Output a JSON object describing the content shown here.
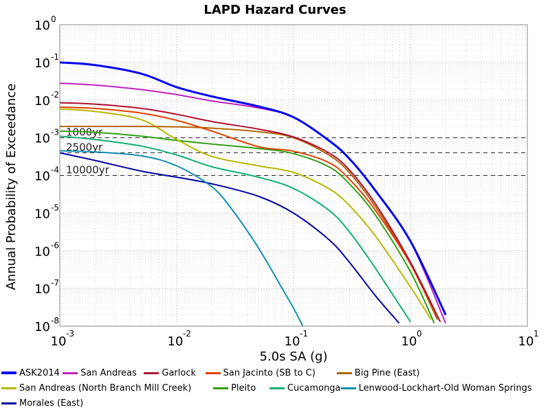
{
  "chart_data": {
    "type": "line",
    "title": "LAPD Hazard Curves",
    "xlabel": "5.0s SA (g)",
    "ylabel": "Annual Probability of Exceedance",
    "xscale": "log",
    "yscale": "log",
    "xlim": [
      0.001,
      10
    ],
    "ylim": [
      1e-08,
      1
    ],
    "x_ticks": [
      {
        "base": "10",
        "exp": "-3"
      },
      {
        "base": "10",
        "exp": "-2"
      },
      {
        "base": "10",
        "exp": "-1"
      },
      {
        "base": "10",
        "exp": "0"
      },
      {
        "base": "10",
        "exp": "1"
      }
    ],
    "y_ticks": [
      {
        "base": "10",
        "exp": "0"
      },
      {
        "base": "10",
        "exp": "-1"
      },
      {
        "base": "10",
        "exp": "-2"
      },
      {
        "base": "10",
        "exp": "-3"
      },
      {
        "base": "10",
        "exp": "-4"
      },
      {
        "base": "10",
        "exp": "-5"
      },
      {
        "base": "10",
        "exp": "-6"
      },
      {
        "base": "10",
        "exp": "-7"
      },
      {
        "base": "10",
        "exp": "-8"
      }
    ],
    "grid": true,
    "legend_position": "bottom",
    "reference_lines": [
      {
        "label": "1000yr",
        "y": 0.001
      },
      {
        "label": "2500yr",
        "y": 0.0004
      },
      {
        "label": "10000yr",
        "y": 0.0001
      }
    ],
    "series": [
      {
        "name": "ASK2014",
        "color": "#0000ee",
        "bold": true,
        "points": [
          [
            0.001,
            0.1
          ],
          [
            0.002,
            0.085
          ],
          [
            0.005,
            0.05
          ],
          [
            0.01,
            0.022
          ],
          [
            0.02,
            0.0125
          ],
          [
            0.05,
            0.0068
          ],
          [
            0.1,
            0.0035
          ],
          [
            0.2,
            0.00085
          ],
          [
            0.3,
            0.00028
          ],
          [
            0.5,
            4e-05
          ],
          [
            1,
            1.8e-06
          ],
          [
            2,
            2e-08
          ]
        ]
      },
      {
        "name": "San Andreas",
        "color": "#c020c0",
        "points": [
          [
            0.001,
            0.028
          ],
          [
            0.002,
            0.025
          ],
          [
            0.005,
            0.019
          ],
          [
            0.01,
            0.014
          ],
          [
            0.02,
            0.0095
          ],
          [
            0.05,
            0.0062
          ],
          [
            0.1,
            0.0035
          ],
          [
            0.2,
            0.00085
          ],
          [
            0.3,
            0.00028
          ],
          [
            0.5,
            4e-05
          ],
          [
            1,
            1.8e-06
          ],
          [
            2,
            1.2e-08
          ]
        ]
      },
      {
        "name": "Garlock",
        "color": "#b01030",
        "points": [
          [
            0.001,
            0.0085
          ],
          [
            0.002,
            0.0078
          ],
          [
            0.005,
            0.006
          ],
          [
            0.01,
            0.0042
          ],
          [
            0.02,
            0.0027
          ],
          [
            0.05,
            0.0017
          ],
          [
            0.1,
            0.00105
          ],
          [
            0.2,
            0.0004
          ],
          [
            0.3,
            0.00014
          ],
          [
            0.5,
            1.8e-05
          ],
          [
            1,
            5e-07
          ],
          [
            1.8,
            1.3e-08
          ]
        ]
      },
      {
        "name": "San Jacinto (SB to C)",
        "color": "#e04000",
        "points": [
          [
            0.001,
            0.0065
          ],
          [
            0.002,
            0.006
          ],
          [
            0.005,
            0.0045
          ],
          [
            0.01,
            0.0029
          ],
          [
            0.02,
            0.0015
          ],
          [
            0.05,
            0.00058
          ],
          [
            0.1,
            0.00044
          ],
          [
            0.2,
            0.00022
          ],
          [
            0.3,
            8e-05
          ],
          [
            0.5,
            1.2e-05
          ],
          [
            1,
            4.5e-07
          ],
          [
            1.8,
            1.3e-08
          ]
        ]
      },
      {
        "name": "Big Pine (East)",
        "color": "#b06000",
        "points": [
          [
            0.001,
            0.002
          ],
          [
            0.002,
            0.002
          ],
          [
            0.005,
            0.002
          ],
          [
            0.01,
            0.00195
          ],
          [
            0.02,
            0.0018
          ],
          [
            0.05,
            0.00145
          ],
          [
            0.1,
            0.001
          ],
          [
            0.2,
            0.00035
          ],
          [
            0.3,
            0.00012
          ],
          [
            0.5,
            1.5e-05
          ],
          [
            1,
            4.5e-07
          ],
          [
            1.7,
            1.5e-08
          ]
        ]
      },
      {
        "name": "San Andreas (North Branch Mill Creek)",
        "color": "#b8b800",
        "points": [
          [
            0.001,
            0.0058
          ],
          [
            0.002,
            0.005
          ],
          [
            0.005,
            0.003
          ],
          [
            0.01,
            0.0009
          ],
          [
            0.02,
            0.00032
          ],
          [
            0.05,
            0.00018
          ],
          [
            0.1,
            0.00012
          ],
          [
            0.2,
            4.5e-05
          ],
          [
            0.3,
            1.6e-05
          ],
          [
            0.5,
            2.5e-06
          ],
          [
            1,
            1.1e-07
          ],
          [
            1.5,
            1.5e-08
          ]
        ]
      },
      {
        "name": "Pleito",
        "color": "#30a010",
        "points": [
          [
            0.001,
            0.0015
          ],
          [
            0.002,
            0.0014
          ],
          [
            0.005,
            0.0011
          ],
          [
            0.01,
            0.00085
          ],
          [
            0.02,
            0.00068
          ],
          [
            0.05,
            0.00052
          ],
          [
            0.1,
            0.00038
          ],
          [
            0.2,
            0.00017
          ],
          [
            0.3,
            6e-05
          ],
          [
            0.5,
            9e-06
          ],
          [
            1,
            2.8e-07
          ],
          [
            1.6,
            1.2e-08
          ]
        ]
      },
      {
        "name": "Cucamonga",
        "color": "#10b070",
        "points": [
          [
            0.001,
            0.0011
          ],
          [
            0.002,
            0.0009
          ],
          [
            0.005,
            0.0006
          ],
          [
            0.01,
            0.00035
          ],
          [
            0.02,
            0.00017
          ],
          [
            0.05,
            9e-05
          ],
          [
            0.1,
            4.5e-05
          ],
          [
            0.2,
            1.2e-05
          ],
          [
            0.3,
            3.2e-06
          ],
          [
            0.5,
            3.5e-07
          ],
          [
            1,
            1.3e-08
          ]
        ]
      },
      {
        "name": "Lenwood-Lockhart-Old Woman Springs",
        "color": "#1090b0",
        "points": [
          [
            0.001,
            0.00045
          ],
          [
            0.002,
            0.00042
          ],
          [
            0.005,
            0.00033
          ],
          [
            0.01,
            0.00018
          ],
          [
            0.02,
            5e-05
          ],
          [
            0.03,
            1.2e-05
          ],
          [
            0.05,
            1.2e-06
          ],
          [
            0.08,
            1e-07
          ],
          [
            0.1,
            3e-08
          ],
          [
            0.12,
            1e-08
          ]
        ]
      },
      {
        "name": "Morales (East)",
        "color": "#0000a0",
        "points": [
          [
            0.001,
            0.0004
          ],
          [
            0.002,
            0.00025
          ],
          [
            0.005,
            0.00013
          ],
          [
            0.01,
            9e-05
          ],
          [
            0.02,
            6e-05
          ],
          [
            0.05,
            2.8e-05
          ],
          [
            0.1,
            1e-05
          ],
          [
            0.2,
            2e-06
          ],
          [
            0.3,
            5e-07
          ],
          [
            0.5,
            6.5e-08
          ],
          [
            0.8,
            1.2e-08
          ]
        ]
      }
    ]
  }
}
